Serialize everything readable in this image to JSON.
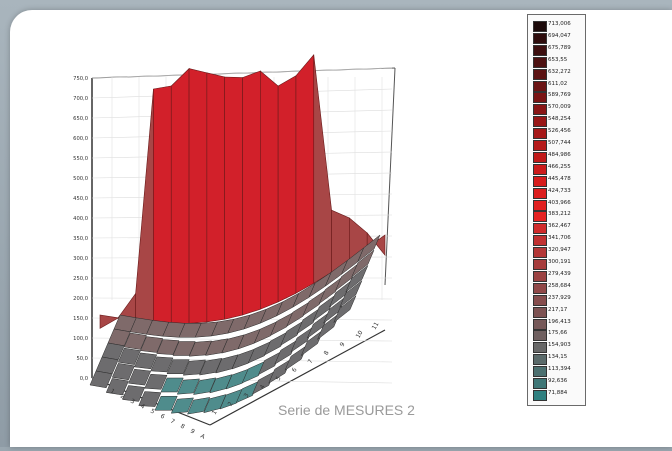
{
  "chart_data": {
    "type": "surface",
    "title": "Serie de MESURES 2",
    "z_ticks": [
      "750,0",
      "700,0",
      "650,0",
      "600,0",
      "550,0",
      "500,0",
      "450,0",
      "400,0",
      "350,0",
      "300,0",
      "250,0",
      "200,0",
      "150,0",
      "100,0",
      "50,0",
      "0,0"
    ],
    "x_ticks": [
      "1",
      "2",
      "3",
      "4",
      "5",
      "6",
      "7",
      "8",
      "9",
      "10",
      "11"
    ],
    "y_ticks": [
      "1",
      "2",
      "3",
      "4",
      "5",
      "6",
      "7",
      "8",
      "9",
      "A"
    ],
    "zlim": [
      0,
      750
    ],
    "legend": {
      "position": "right",
      "entries": [
        {
          "label": "713,006",
          "color": "#1c0a0a"
        },
        {
          "label": "694,047",
          "color": "#2e0c0c"
        },
        {
          "label": "675,789",
          "color": "#3d0f0f"
        },
        {
          "label": "653,55",
          "color": "#4d1111"
        },
        {
          "label": "632,272",
          "color": "#5c1313"
        },
        {
          "label": "611,02",
          "color": "#6b1414"
        },
        {
          "label": "589,769",
          "color": "#7a1515"
        },
        {
          "label": "570,009",
          "color": "#891616"
        },
        {
          "label": "548,254",
          "color": "#981717"
        },
        {
          "label": "526,456",
          "color": "#a61818"
        },
        {
          "label": "507,744",
          "color": "#b51919"
        },
        {
          "label": "484,986",
          "color": "#c01a1a"
        },
        {
          "label": "466,255",
          "color": "#cc1b1b"
        },
        {
          "label": "445,478",
          "color": "#d61c1c"
        },
        {
          "label": "424,733",
          "color": "#dc1d1d"
        },
        {
          "label": "403,966",
          "color": "#e01f1f"
        },
        {
          "label": "383,212",
          "color": "#e42121"
        },
        {
          "label": "362,467",
          "color": "#cf2a2a"
        },
        {
          "label": "341,706",
          "color": "#c03030"
        },
        {
          "label": "320,947",
          "color": "#b33636"
        },
        {
          "label": "300,191",
          "color": "#a63c3c"
        },
        {
          "label": "279,439",
          "color": "#9b4242"
        },
        {
          "label": "258,684",
          "color": "#904848"
        },
        {
          "label": "237,929",
          "color": "#864d4d"
        },
        {
          "label": "217,17",
          "color": "#7d5252"
        },
        {
          "label": "196,413",
          "color": "#765858"
        },
        {
          "label": "175,66",
          "color": "#6f5f5f"
        },
        {
          "label": "154,903",
          "color": "#676767"
        },
        {
          "label": "134,15",
          "color": "#5a6a6a"
        },
        {
          "label": "113,394",
          "color": "#4c7070"
        },
        {
          "label": "92,636",
          "color": "#3f7777"
        },
        {
          "label": "71,884",
          "color": "#2f8080"
        }
      ]
    },
    "surface": {
      "front_ridge": [
        60,
        80,
        140,
        700,
        700,
        740,
        720,
        700,
        690,
        700,
        650,
        670,
        720,
        280,
        250,
        200,
        130
      ],
      "back_floor": [
        180,
        200,
        260,
        250,
        230,
        210,
        220,
        260,
        240,
        220,
        200,
        300,
        260,
        230,
        210,
        200,
        190
      ]
    }
  }
}
